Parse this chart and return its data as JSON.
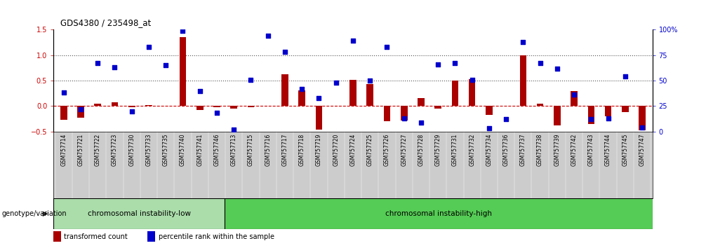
{
  "title": "GDS4380 / 235498_at",
  "samples": [
    "GSM757714",
    "GSM757721",
    "GSM757722",
    "GSM757723",
    "GSM757730",
    "GSM757733",
    "GSM757735",
    "GSM757740",
    "GSM757741",
    "GSM757746",
    "GSM757713",
    "GSM757715",
    "GSM757716",
    "GSM757717",
    "GSM757718",
    "GSM757719",
    "GSM757720",
    "GSM757724",
    "GSM757725",
    "GSM757726",
    "GSM757727",
    "GSM757728",
    "GSM757729",
    "GSM757731",
    "GSM757732",
    "GSM757734",
    "GSM757736",
    "GSM757737",
    "GSM757738",
    "GSM757739",
    "GSM757742",
    "GSM757743",
    "GSM757744",
    "GSM757745",
    "GSM757747"
  ],
  "red_bars": [
    -0.27,
    -0.23,
    0.05,
    0.08,
    -0.02,
    0.02,
    0.0,
    1.35,
    -0.08,
    -0.02,
    -0.05,
    -0.02,
    0.0,
    0.62,
    0.31,
    -0.47,
    0.0,
    0.52,
    0.43,
    -0.3,
    -0.29,
    0.15,
    -0.05,
    0.5,
    0.53,
    -0.18,
    0.0,
    1.0,
    0.05,
    -0.38,
    0.29,
    -0.35,
    -0.2,
    -0.12,
    -0.48
  ],
  "blue_markers": [
    38,
    22,
    67,
    63,
    20,
    83,
    65,
    99,
    40,
    18,
    2,
    51,
    94,
    78,
    42,
    33,
    48,
    89,
    50,
    83,
    13,
    9,
    66,
    67,
    51,
    3,
    12,
    88,
    67,
    62,
    36,
    12,
    13,
    54,
    4
  ],
  "group1_count": 10,
  "group1_label": "chromosomal instability-low",
  "group2_label": "chromosomal instability-high",
  "group1_color": "#aaddaa",
  "group2_color": "#55cc55",
  "bar_color": "#AA0000",
  "marker_color": "#0000CC",
  "ylim": [
    -0.5,
    1.5
  ],
  "y2lim": [
    0,
    100
  ],
  "yticks_left": [
    -0.5,
    0.0,
    0.5,
    1.0,
    1.5
  ],
  "yticks_right": [
    0,
    25,
    50,
    75,
    100
  ],
  "legend_items": [
    {
      "label": "transformed count",
      "color": "#AA0000"
    },
    {
      "label": "percentile rank within the sample",
      "color": "#0000CC"
    }
  ]
}
